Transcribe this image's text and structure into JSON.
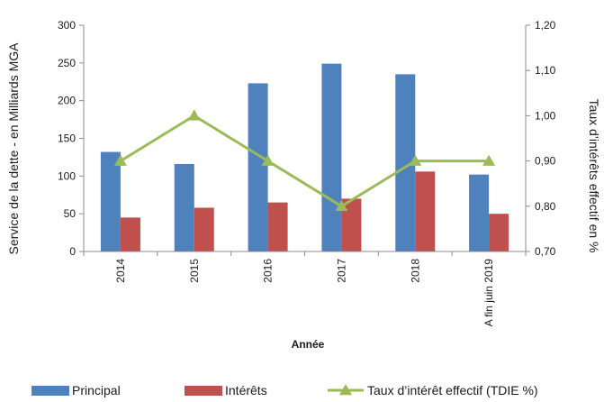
{
  "chart_data": {
    "type": "bar",
    "categories": [
      "2014",
      "2015",
      "2016",
      "2017",
      "2018",
      "A fin juin 2019"
    ],
    "series": [
      {
        "name": "Principal",
        "type": "bar",
        "axis": "left",
        "color": "#4f81bd",
        "values": [
          132,
          116,
          223,
          249,
          235,
          102
        ]
      },
      {
        "name": "Intérêts",
        "type": "bar",
        "axis": "left",
        "color": "#c0504d",
        "values": [
          45,
          58,
          65,
          70,
          106,
          50
        ]
      },
      {
        "name": "Taux d’intérêt effectif (TDIE %)",
        "type": "line",
        "axis": "right",
        "color": "#9bbb59",
        "marker": "triangle",
        "values": [
          0.9,
          1.0,
          0.9,
          0.8,
          0.9,
          0.9
        ]
      }
    ],
    "xlabel": "Année",
    "ylabel": "Service de la dette - en Milliards MGA",
    "y2label": "Taux d’intérêts effectif en %",
    "ylim": [
      0,
      300
    ],
    "yticks": [
      0,
      50,
      100,
      150,
      200,
      250,
      300
    ],
    "y2lim": [
      0.7,
      1.2
    ],
    "y2ticks": [
      "0,70",
      "0,80",
      "0,90",
      "1,00",
      "1,10",
      "1,20"
    ],
    "grid": false,
    "legend_position": "bottom"
  }
}
